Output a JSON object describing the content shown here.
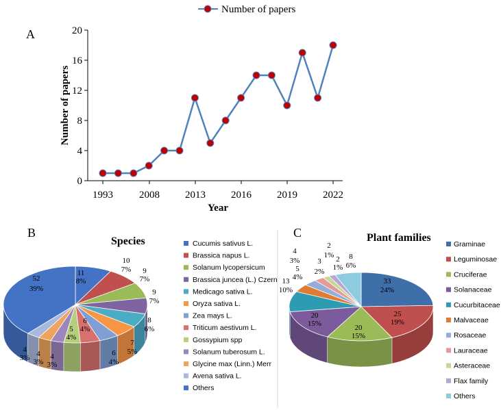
{
  "panels": {
    "a_label": "A",
    "b_label": "B",
    "c_label": "C"
  },
  "colors": {
    "line": "#4f81bd",
    "marker": "#c00000",
    "slices": [
      "#4472c4",
      "#c0504d",
      "#9bbb59",
      "#8064a2",
      "#4bacc6",
      "#f79646",
      "#7f9fd3",
      "#d8716e",
      "#b5cf7c",
      "#9d85bd",
      "#f0a35c",
      "#a8b9dd"
    ],
    "families": [
      "#3f6fa8",
      "#c0504d",
      "#9bbb59",
      "#7b5b9b",
      "#2d9cb3",
      "#e07b33",
      "#93aedb",
      "#e39a98",
      "#c4da93",
      "#b8a7d2",
      "#8ccbe0"
    ]
  },
  "chart_data": [
    {
      "type": "line",
      "legend": "Number of papers",
      "xlabel": "Year",
      "ylabel": "Number of papers",
      "ylim": [
        0,
        20
      ],
      "yticks": [
        "0",
        "4",
        "8",
        "12",
        "16",
        "20"
      ],
      "xticks": [
        "1993",
        "2008",
        "2013",
        "2016",
        "2019",
        "2022"
      ],
      "series": [
        {
          "name": "Number of papers",
          "values": [
            1,
            1,
            1,
            2,
            4,
            4,
            11,
            5,
            8,
            11,
            14,
            14,
            10,
            17,
            11,
            18
          ]
        }
      ]
    },
    {
      "type": "pie",
      "title": "Species",
      "legend_labels": [
        "Cucumis sativus L.",
        "Brassica napus L.",
        "Solanum lycopersicum",
        "Brassica juncea (L.) Czern",
        "Medicago sativa L.",
        "Oryza sativa L.",
        "Zea mays L.",
        "Triticum aestivum L.",
        "Gossypium spp",
        "Solanum tuberosum L.",
        "Glycine max (Linn.) Merr",
        "Avena sativa L.",
        "Others"
      ],
      "values": [
        11,
        10,
        9,
        9,
        8,
        7,
        6,
        6,
        5,
        4,
        4,
        4,
        52
      ],
      "value_labels": [
        "11",
        "10",
        "9",
        "9",
        "8",
        "7",
        "6",
        "6",
        "5",
        "4",
        "4",
        "4",
        "52"
      ],
      "percent_labels": [
        "8%",
        "7%",
        "7%",
        "7%",
        "6%",
        "5%",
        "4%",
        "4%",
        "4%",
        "3%",
        "3%",
        "3%",
        "39%"
      ]
    },
    {
      "type": "pie",
      "title": "Plant families",
      "legend_labels": [
        "Graminae",
        "Leguminosae",
        "Cruciferae",
        "Solanaceae",
        "Cucurbitaceae",
        "Malvaceae",
        "Rosaceae",
        "Lauraceae",
        "Asteraceae",
        "Flax family",
        "Others"
      ],
      "values": [
        33,
        25,
        20,
        20,
        13,
        5,
        4,
        3,
        2,
        2,
        8
      ],
      "value_labels": [
        "33",
        "25",
        "20",
        "20",
        "13",
        "5",
        "4",
        "3",
        "2",
        "2",
        "8"
      ],
      "percent_labels": [
        "24%",
        "19%",
        "15%",
        "15%",
        "10%",
        "4%",
        "3%",
        "2%",
        "1%",
        "1%",
        "6%"
      ]
    }
  ]
}
